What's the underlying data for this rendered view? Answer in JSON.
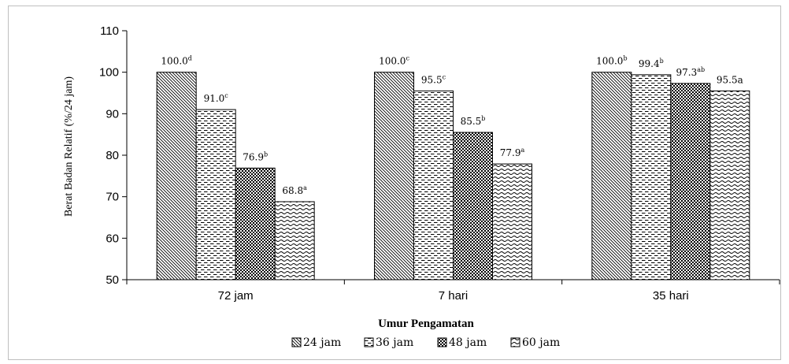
{
  "chart_data": {
    "type": "bar",
    "title": "",
    "xlabel": "Umur Pengamatan",
    "ylabel": "Berat Badan Relatif (%/24 jam)",
    "ylim": [
      50,
      110
    ],
    "yticks": [
      50,
      60,
      70,
      80,
      90,
      100,
      110
    ],
    "categories": [
      "72 jam",
      "7 hari",
      "35 hari"
    ],
    "series": [
      {
        "name": "24 jam",
        "pattern": "diagonal",
        "values": [
          100.0,
          100.0,
          100.0
        ],
        "labels": [
          "100.0",
          "100.0",
          "100.0"
        ],
        "superscripts": [
          "d",
          "c",
          "b"
        ]
      },
      {
        "name": "36 jam",
        "pattern": "dashes",
        "values": [
          91.0,
          95.5,
          99.4
        ],
        "labels": [
          "91.0",
          "95.5",
          "99.4"
        ],
        "superscripts": [
          "c",
          "c",
          "b"
        ]
      },
      {
        "name": "48 jam",
        "pattern": "checker",
        "values": [
          76.9,
          85.5,
          97.3
        ],
        "labels": [
          "76.9",
          "85.5",
          "97.3"
        ],
        "superscripts": [
          "b",
          "b",
          "ab"
        ]
      },
      {
        "name": "60 jam",
        "pattern": "waves",
        "values": [
          68.8,
          77.9,
          95.5
        ],
        "labels": [
          "68.8",
          "77.9",
          "95.5a"
        ],
        "superscripts": [
          "a",
          "a",
          ""
        ]
      }
    ],
    "grid": false,
    "legend_position": "bottom"
  }
}
